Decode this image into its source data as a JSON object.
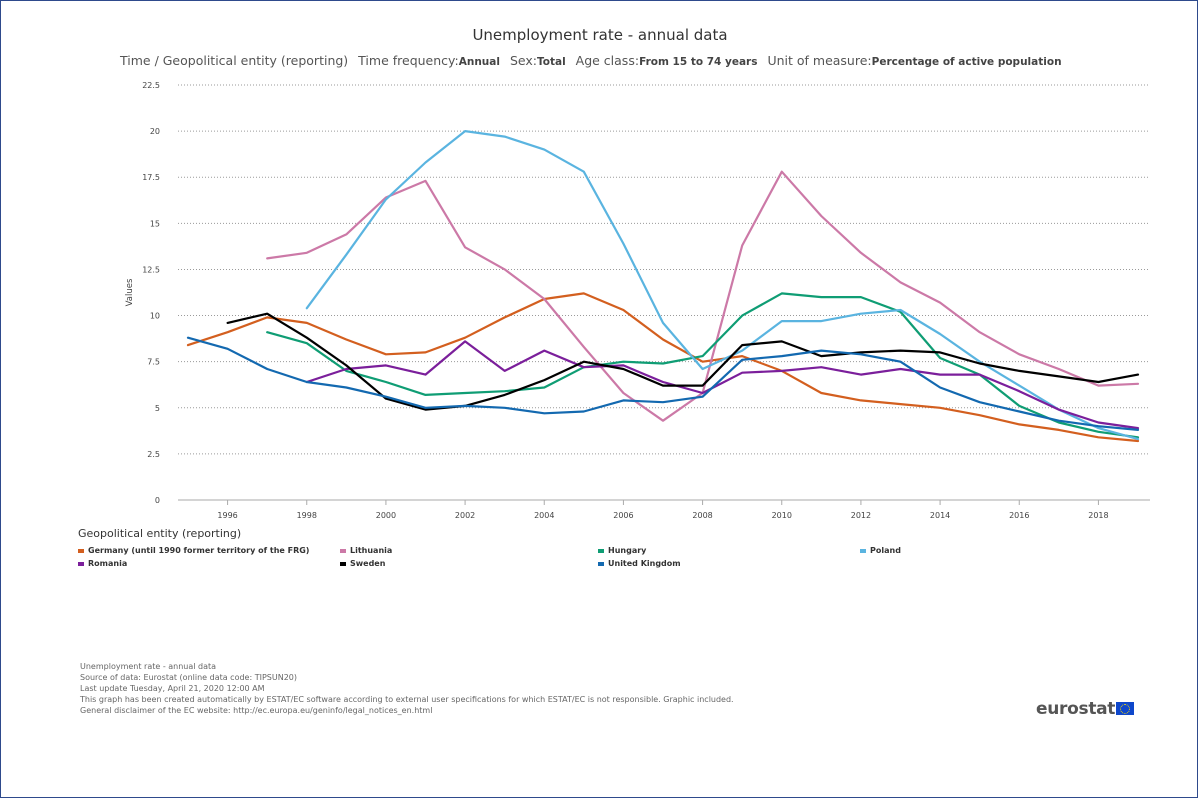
{
  "header": {
    "title": "Unemployment rate - annual data",
    "sub1": "Time / Geopolitical entity (reporting)",
    "sub2_label": "Time frequency:",
    "sub2_value": "Annual",
    "sub3_label": "Sex:",
    "sub3_value": "Total",
    "sub4_label": "Age class:",
    "sub4_value": "From 15 to 74 years",
    "sub5_label": "Unit of measure:",
    "sub5_value": "Percentage of active population"
  },
  "legend": {
    "title": "Geopolitical entity (reporting)"
  },
  "footer": {
    "line1": "Unemployment rate - annual data",
    "line2": "Source of data: Eurostat (online data code: TIPSUN20)",
    "line3": "Last update Tuesday, April 21, 2020 12:00 AM",
    "line4": "This graph has been created automatically by ESTAT/EC software according to external user specifications for which ESTAT/EC is not responsible. Graphic included.",
    "line5": "General disclaimer of the EC website: http://ec.europa.eu/geninfo/legal_notices_en.html"
  },
  "logo": {
    "text": "eurostat"
  },
  "chart_data": {
    "type": "line",
    "title": "Unemployment rate - annual data",
    "ylabel": "Values",
    "xlabel": "",
    "ylim": [
      0,
      22.5
    ],
    "xlim": [
      1995,
      2019
    ],
    "y_ticks": [
      "0",
      "2.5",
      "5",
      "7.5",
      "10",
      "12.5",
      "15",
      "17.5",
      "20",
      "22.5"
    ],
    "x_ticks": [
      "1996",
      "1998",
      "2000",
      "2002",
      "2004",
      "2006",
      "2008",
      "2010",
      "2012",
      "2014",
      "2016",
      "2018"
    ],
    "grid": "horizontal dotted",
    "legend_position": "bottom",
    "x": [
      1995,
      1996,
      1997,
      1998,
      1999,
      2000,
      2001,
      2002,
      2003,
      2004,
      2005,
      2006,
      2007,
      2008,
      2009,
      2010,
      2011,
      2012,
      2013,
      2014,
      2015,
      2016,
      2017,
      2018,
      2019
    ],
    "series": [
      {
        "name": "Germany (until 1990 former territory of the FRG)",
        "color": "#d35f1f",
        "values": [
          8.4,
          9.1,
          9.9,
          9.6,
          8.7,
          7.9,
          8.0,
          8.8,
          9.9,
          10.9,
          11.2,
          10.3,
          8.7,
          7.5,
          7.8,
          7.0,
          5.8,
          5.4,
          5.2,
          5.0,
          4.6,
          4.1,
          3.8,
          3.4,
          3.2
        ]
      },
      {
        "name": "Lithuania",
        "color": "#cc79a7",
        "values": [
          null,
          null,
          13.1,
          13.4,
          14.4,
          16.4,
          17.3,
          13.7,
          12.5,
          10.9,
          8.3,
          5.8,
          4.3,
          5.8,
          13.8,
          17.8,
          15.4,
          13.4,
          11.8,
          10.7,
          9.1,
          7.9,
          7.1,
          6.2,
          6.3
        ]
      },
      {
        "name": "Hungary",
        "color": "#0f9d74",
        "values": [
          null,
          null,
          9.1,
          8.5,
          7.0,
          6.4,
          5.7,
          5.8,
          5.9,
          6.1,
          7.2,
          7.5,
          7.4,
          7.8,
          10.0,
          11.2,
          11.0,
          11.0,
          10.2,
          7.7,
          6.8,
          5.1,
          4.2,
          3.7,
          3.4
        ]
      },
      {
        "name": "Poland",
        "color": "#5ab4e0",
        "values": [
          null,
          null,
          null,
          10.4,
          13.3,
          16.3,
          18.3,
          20.0,
          19.7,
          19.0,
          17.8,
          13.9,
          9.6,
          7.1,
          8.1,
          9.7,
          9.7,
          10.1,
          10.3,
          9.0,
          7.5,
          6.2,
          4.9,
          3.9,
          3.3
        ]
      },
      {
        "name": "Romania",
        "color": "#7b1f9b",
        "values": [
          null,
          null,
          null,
          6.4,
          7.1,
          7.3,
          6.8,
          8.6,
          7.0,
          8.1,
          7.2,
          7.3,
          6.4,
          5.8,
          6.9,
          7.0,
          7.2,
          6.8,
          7.1,
          6.8,
          6.8,
          5.9,
          4.9,
          4.2,
          3.9
        ]
      },
      {
        "name": "Sweden",
        "color": "#000000",
        "values": [
          null,
          9.6,
          10.1,
          8.8,
          7.3,
          5.5,
          4.9,
          5.1,
          5.7,
          6.5,
          7.5,
          7.1,
          6.2,
          6.2,
          8.4,
          8.6,
          7.8,
          8.0,
          8.1,
          8.0,
          7.4,
          7.0,
          6.7,
          6.4,
          6.8
        ]
      },
      {
        "name": "United Kingdom",
        "color": "#1369b0",
        "values": [
          8.8,
          8.2,
          7.1,
          6.4,
          6.1,
          5.6,
          5.0,
          5.1,
          5.0,
          4.7,
          4.8,
          5.4,
          5.3,
          5.6,
          7.6,
          7.8,
          8.1,
          7.9,
          7.5,
          6.1,
          5.3,
          4.8,
          4.3,
          4.0,
          3.8
        ]
      }
    ]
  }
}
